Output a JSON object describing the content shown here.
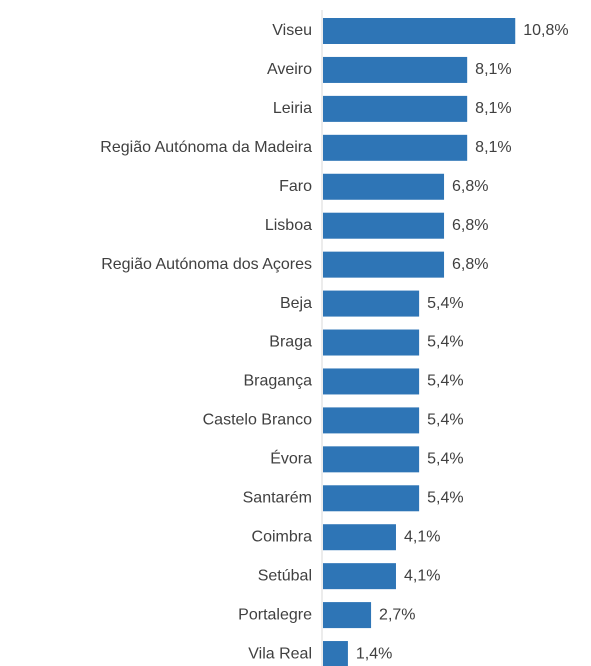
{
  "chart_data": {
    "type": "bar",
    "orientation": "horizontal",
    "color": "#2e75b6",
    "categories": [
      "Viseu",
      "Aveiro",
      "Leiria",
      "Região Autónoma da Madeira",
      "Faro",
      "Lisboa",
      "Região Autónoma dos Açores",
      "Beja",
      "Braga",
      "Bragança",
      "Castelo Branco",
      "Évora",
      "Santarém",
      "Coimbra",
      "Setúbal",
      "Portalegre",
      "Vila Real"
    ],
    "values": [
      10.8,
      8.1,
      8.1,
      8.1,
      6.8,
      6.8,
      6.8,
      5.4,
      5.4,
      5.4,
      5.4,
      5.4,
      5.4,
      4.1,
      4.1,
      2.7,
      1.4
    ],
    "value_labels": [
      "10,8%",
      "8,1%",
      "8,1%",
      "8,1%",
      "6,8%",
      "6,8%",
      "6,8%",
      "5,4%",
      "5,4%",
      "5,4%",
      "5,4%",
      "5,4%",
      "5,4%",
      "4,1%",
      "4,1%",
      "2,7%",
      "1,4%"
    ]
  }
}
